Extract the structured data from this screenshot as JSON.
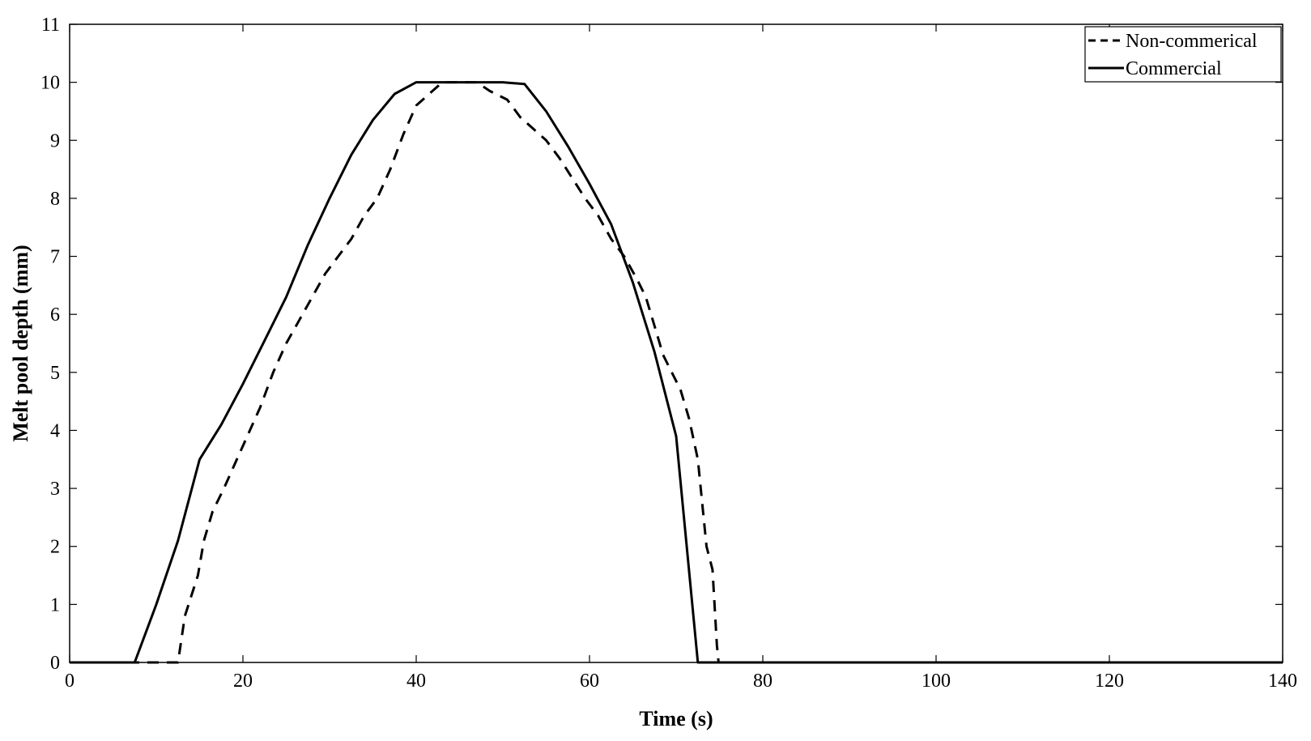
{
  "chart_data": {
    "type": "line",
    "title": "",
    "xlabel": "Time  (s)",
    "ylabel": "Melt pool depth  (mm)",
    "xlim": [
      0,
      140
    ],
    "ylim": [
      0,
      11
    ],
    "xticks": [
      0,
      20,
      40,
      60,
      80,
      100,
      120,
      140
    ],
    "yticks": [
      0,
      1,
      2,
      3,
      4,
      5,
      6,
      7,
      8,
      9,
      10,
      11
    ],
    "grid": false,
    "legend_position": "top-right",
    "series": [
      {
        "name": "Non-commerical",
        "style": "dashed",
        "color": "#000000",
        "points": [
          [
            0,
            0
          ],
          [
            12.5,
            0
          ],
          [
            13.3,
            0.8
          ],
          [
            14.8,
            1.5
          ],
          [
            15.5,
            2.1
          ],
          [
            16.5,
            2.6
          ],
          [
            17.8,
            3.0
          ],
          [
            19,
            3.4
          ],
          [
            20.5,
            3.9
          ],
          [
            22,
            4.4
          ],
          [
            23.5,
            5.0
          ],
          [
            25,
            5.5
          ],
          [
            26.5,
            5.9
          ],
          [
            28,
            6.3
          ],
          [
            29.5,
            6.7
          ],
          [
            31,
            7.0
          ],
          [
            32.5,
            7.3
          ],
          [
            34,
            7.7
          ],
          [
            35.5,
            8.0
          ],
          [
            37,
            8.5
          ],
          [
            38.5,
            9.1
          ],
          [
            40,
            9.6
          ],
          [
            41.5,
            9.8
          ],
          [
            43,
            10.0
          ],
          [
            47,
            10.0
          ],
          [
            48.5,
            9.85
          ],
          [
            50.5,
            9.7
          ],
          [
            52,
            9.4
          ],
          [
            53.5,
            9.2
          ],
          [
            55,
            9.0
          ],
          [
            56.5,
            8.7
          ],
          [
            58,
            8.35
          ],
          [
            59.5,
            8.0
          ],
          [
            61,
            7.7
          ],
          [
            62.5,
            7.3
          ],
          [
            64,
            7.0
          ],
          [
            65.5,
            6.6
          ],
          [
            66.5,
            6.3
          ],
          [
            67.5,
            5.8
          ],
          [
            68.5,
            5.3
          ],
          [
            69.5,
            5.0
          ],
          [
            70.5,
            4.7
          ],
          [
            71.5,
            4.2
          ],
          [
            72.5,
            3.5
          ],
          [
            73.5,
            2.0
          ],
          [
            74.2,
            1.6
          ],
          [
            74.7,
            0.3
          ],
          [
            74.9,
            0
          ],
          [
            140,
            0
          ]
        ]
      },
      {
        "name": "Commercial",
        "style": "solid",
        "color": "#000000",
        "points": [
          [
            0,
            0
          ],
          [
            7.5,
            0
          ],
          [
            10,
            1.0
          ],
          [
            12.5,
            2.1
          ],
          [
            15,
            3.5
          ],
          [
            17.5,
            4.1
          ],
          [
            20,
            4.8
          ],
          [
            22.5,
            5.55
          ],
          [
            25,
            6.3
          ],
          [
            27.5,
            7.2
          ],
          [
            30,
            8.0
          ],
          [
            32.5,
            8.75
          ],
          [
            35,
            9.35
          ],
          [
            37.5,
            9.8
          ],
          [
            40,
            10.0
          ],
          [
            45,
            10.0
          ],
          [
            50,
            10.0
          ],
          [
            52.5,
            9.97
          ],
          [
            55,
            9.5
          ],
          [
            57.5,
            8.9
          ],
          [
            60,
            8.25
          ],
          [
            62.5,
            7.55
          ],
          [
            65,
            6.55
          ],
          [
            67.5,
            5.35
          ],
          [
            70,
            3.9
          ],
          [
            72.5,
            0
          ],
          [
            140,
            0
          ]
        ]
      }
    ]
  }
}
